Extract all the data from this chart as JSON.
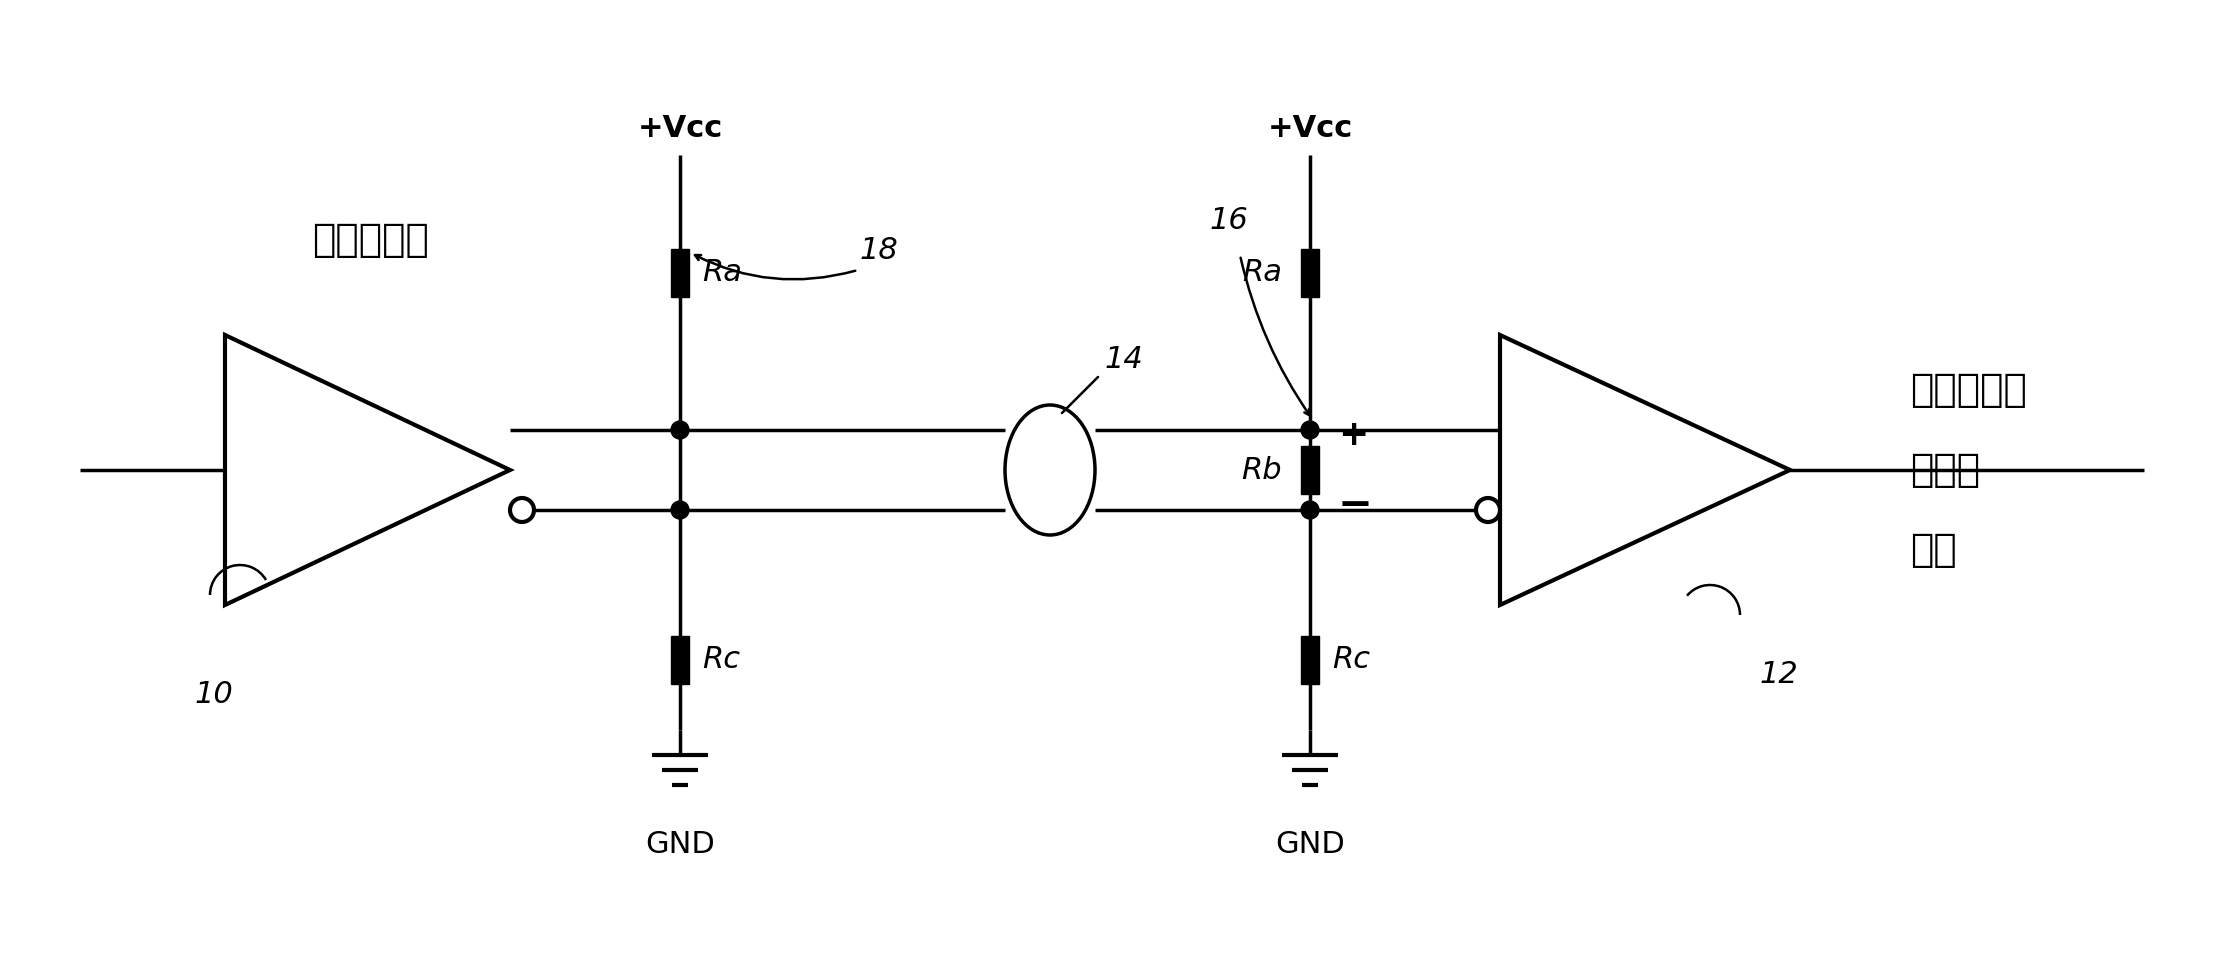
{
  "bg_color": "#ffffff",
  "line_color": "#000000",
  "lw": 2.5,
  "fig_w": 22.24,
  "fig_h": 9.56,
  "labels": {
    "line_driver": "线路驱动器",
    "recv_line1": "线路接收器",
    "recv_line2": "接收器",
    "recv_line3": "输出",
    "vcc1": "+Vcc",
    "vcc2": "+Vcc",
    "gnd1": "GND",
    "gnd2": "GND",
    "Ra1": "Ra",
    "Ra2": "Ra",
    "Rb": "Rb",
    "Rc1": "Rc",
    "Rc2": "Rc",
    "label_10": "10",
    "label_12": "12",
    "label_14": "14",
    "label_16": "16",
    "label_18": "18",
    "plus": "+",
    "minus": "−"
  }
}
